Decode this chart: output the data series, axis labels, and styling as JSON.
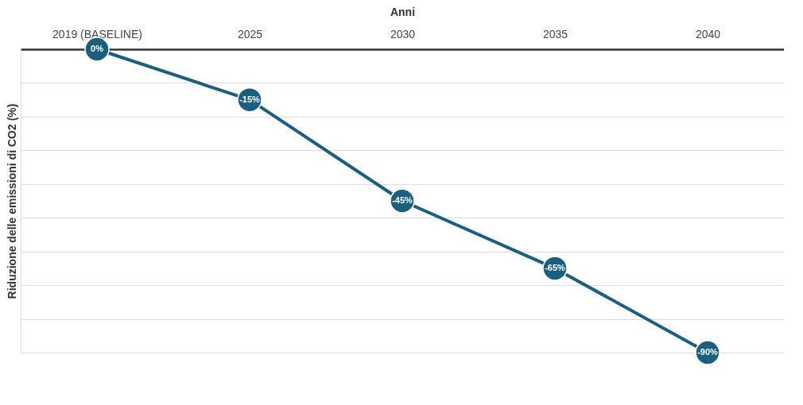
{
  "chart_data": {
    "type": "line",
    "xlabel": "Anni",
    "ylabel": "Riduzione delle emissioni di CO2 (%)",
    "categories": [
      "2019 (BASELINE)",
      "2025",
      "2030",
      "2035",
      "2040"
    ],
    "values": [
      0,
      -15,
      -45,
      -65,
      -90
    ],
    "value_labels": [
      "0%",
      "-15%",
      "-45%",
      "-65%",
      "-90%"
    ],
    "color": "#1a5e80",
    "ylim": [
      -90,
      0
    ],
    "yticks": [
      {
        "value": 0,
        "label": null
      },
      {
        "value": -10,
        "label": null
      },
      {
        "value": -20,
        "label": null
      },
      {
        "value": -30,
        "label": null
      },
      {
        "value": -40,
        "label": null
      },
      {
        "value": -50,
        "label": null
      },
      {
        "value": -60,
        "label": null
      },
      {
        "value": -70,
        "label": null
      },
      {
        "value": -80,
        "label": null
      },
      {
        "value": -90,
        "label": null
      }
    ],
    "grid": "y",
    "tick_labels": "x",
    "marker": "circle",
    "line_style": "solid"
  }
}
